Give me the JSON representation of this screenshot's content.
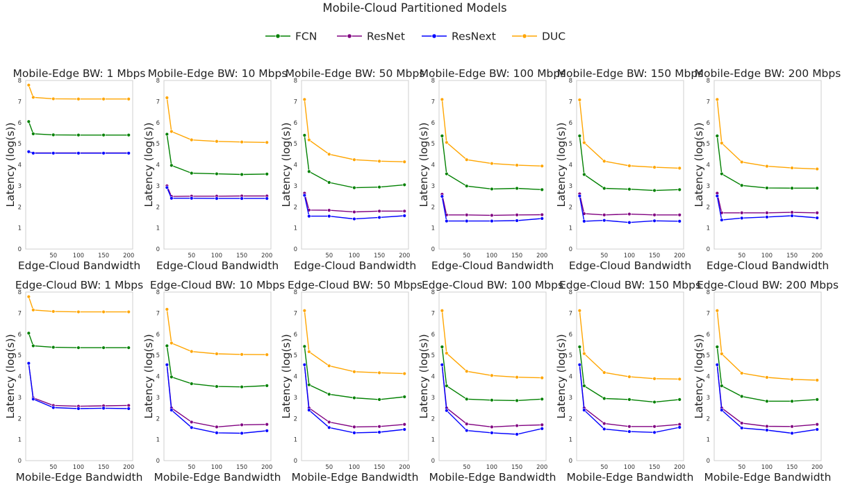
{
  "figure_title": "Mobile-Cloud Partitioned Models",
  "legend": [
    {
      "name": "FCN",
      "color": "#008000"
    },
    {
      "name": "ResNet",
      "color": "#800080"
    },
    {
      "name": "ResNext",
      "color": "#0000ff"
    },
    {
      "name": "DUC",
      "color": "#ffa500"
    }
  ],
  "chart_data": [
    {
      "type": "line",
      "title": "Mobile-Edge BW: 1 Mbps",
      "xlabel": "Edge-Cloud Bandwidth",
      "ylabel": "Latency (log(s))",
      "ylim": [
        0,
        8
      ],
      "x": [
        1,
        10,
        50,
        100,
        150,
        200
      ],
      "xticks": [
        50,
        100,
        150,
        200
      ],
      "yticks": [
        0,
        1,
        2,
        3,
        4,
        5,
        6,
        7,
        8
      ],
      "series": [
        {
          "name": "FCN",
          "values": [
            6.05,
            5.47,
            5.42,
            5.41,
            5.41,
            5.41
          ]
        },
        {
          "name": "ResNet",
          "values": [
            4.62,
            4.56,
            4.56,
            4.56,
            4.56,
            4.56
          ]
        },
        {
          "name": "ResNext",
          "values": [
            4.62,
            4.55,
            4.55,
            4.55,
            4.55,
            4.55
          ]
        },
        {
          "name": "DUC",
          "values": [
            7.78,
            7.2,
            7.13,
            7.12,
            7.12,
            7.12
          ]
        }
      ]
    },
    {
      "type": "line",
      "title": "Mobile-Edge BW: 10 Mbps",
      "xlabel": "Edge-Cloud Bandwidth",
      "ylabel": "Latency (log(s))",
      "ylim": [
        0,
        8
      ],
      "x": [
        1,
        10,
        50,
        100,
        150,
        200
      ],
      "xticks": [
        50,
        100,
        150,
        200
      ],
      "yticks": [
        0,
        1,
        2,
        3,
        4,
        5,
        6,
        7,
        8
      ],
      "series": [
        {
          "name": "FCN",
          "values": [
            5.45,
            3.97,
            3.6,
            3.57,
            3.54,
            3.56
          ]
        },
        {
          "name": "ResNet",
          "values": [
            3.0,
            2.5,
            2.51,
            2.51,
            2.52,
            2.52
          ]
        },
        {
          "name": "ResNext",
          "values": [
            2.92,
            2.41,
            2.41,
            2.4,
            2.4,
            2.4
          ]
        },
        {
          "name": "DUC",
          "values": [
            7.18,
            5.58,
            5.18,
            5.11,
            5.08,
            5.06
          ]
        }
      ]
    },
    {
      "type": "line",
      "title": "Mobile-Edge BW: 50 Mbps",
      "xlabel": "Edge-Cloud Bandwidth",
      "ylabel": "Latency (log(s))",
      "ylim": [
        0,
        8
      ],
      "x": [
        1,
        10,
        50,
        100,
        150,
        200
      ],
      "xticks": [
        50,
        100,
        150,
        200
      ],
      "yticks": [
        0,
        1,
        2,
        3,
        4,
        5,
        6,
        7,
        8
      ],
      "series": [
        {
          "name": "FCN",
          "values": [
            5.4,
            3.68,
            3.16,
            2.91,
            2.94,
            3.05
          ]
        },
        {
          "name": "ResNet",
          "values": [
            2.65,
            1.85,
            1.84,
            1.76,
            1.8,
            1.8
          ]
        },
        {
          "name": "ResNext",
          "values": [
            2.55,
            1.56,
            1.56,
            1.43,
            1.5,
            1.58
          ]
        },
        {
          "name": "DUC",
          "values": [
            7.1,
            5.18,
            4.5,
            4.24,
            4.17,
            4.14
          ]
        }
      ]
    },
    {
      "type": "line",
      "title": "Mobile-Edge BW: 100 Mbps",
      "xlabel": "Edge-Cloud Bandwidth",
      "ylabel": "Latency (log(s))",
      "ylim": [
        0,
        8
      ],
      "x": [
        1,
        10,
        50,
        100,
        150,
        200
      ],
      "xticks": [
        50,
        100,
        150,
        200
      ],
      "yticks": [
        0,
        1,
        2,
        3,
        4,
        5,
        6,
        7,
        8
      ],
      "series": [
        {
          "name": "FCN",
          "values": [
            5.37,
            3.57,
            2.99,
            2.85,
            2.88,
            2.82
          ]
        },
        {
          "name": "ResNet",
          "values": [
            2.6,
            1.62,
            1.62,
            1.6,
            1.62,
            1.63
          ]
        },
        {
          "name": "ResNext",
          "values": [
            2.5,
            1.33,
            1.33,
            1.33,
            1.35,
            1.45
          ]
        },
        {
          "name": "DUC",
          "values": [
            7.1,
            5.06,
            4.24,
            4.06,
            3.98,
            3.94
          ]
        }
      ]
    },
    {
      "type": "line",
      "title": "Mobile-Edge BW: 150 Mbps",
      "xlabel": "Edge-Cloud Bandwidth",
      "ylabel": "Latency (log(s))",
      "ylim": [
        0,
        8
      ],
      "x": [
        1,
        10,
        50,
        100,
        150,
        200
      ],
      "xticks": [
        50,
        100,
        150,
        200
      ],
      "yticks": [
        0,
        1,
        2,
        3,
        4,
        5,
        6,
        7,
        8
      ],
      "series": [
        {
          "name": "FCN",
          "values": [
            5.37,
            3.54,
            2.88,
            2.84,
            2.78,
            2.82
          ]
        },
        {
          "name": "ResNet",
          "values": [
            2.62,
            1.68,
            1.62,
            1.66,
            1.62,
            1.62
          ]
        },
        {
          "name": "ResNext",
          "values": [
            2.52,
            1.32,
            1.36,
            1.26,
            1.34,
            1.32
          ]
        },
        {
          "name": "DUC",
          "values": [
            7.08,
            5.05,
            4.17,
            3.95,
            3.88,
            3.84
          ]
        }
      ]
    },
    {
      "type": "line",
      "title": "Mobile-Edge BW: 200 Mbps",
      "xlabel": "Edge-Cloud Bandwidth",
      "ylabel": "Latency (log(s))",
      "ylim": [
        0,
        8
      ],
      "x": [
        1,
        10,
        50,
        100,
        150,
        200
      ],
      "xticks": [
        50,
        100,
        150,
        200
      ],
      "yticks": [
        0,
        1,
        2,
        3,
        4,
        5,
        6,
        7,
        8
      ],
      "series": [
        {
          "name": "FCN",
          "values": [
            5.37,
            3.57,
            3.02,
            2.9,
            2.89,
            2.89
          ]
        },
        {
          "name": "ResNet",
          "values": [
            2.65,
            1.72,
            1.72,
            1.72,
            1.74,
            1.72
          ]
        },
        {
          "name": "ResNext",
          "values": [
            2.52,
            1.38,
            1.47,
            1.52,
            1.58,
            1.48
          ]
        },
        {
          "name": "DUC",
          "values": [
            7.1,
            5.03,
            4.13,
            3.93,
            3.85,
            3.8
          ]
        }
      ]
    },
    {
      "type": "line",
      "title": "Edge-Cloud BW: 1 Mbps",
      "xlabel": "Mobile-Edge Bandwidth",
      "ylabel": "Latency (log(s))",
      "ylim": [
        0,
        8
      ],
      "x": [
        1,
        10,
        50,
        100,
        150,
        200
      ],
      "xticks": [
        50,
        100,
        150,
        200
      ],
      "yticks": [
        0,
        1,
        2,
        3,
        4,
        5,
        6,
        7,
        8
      ],
      "series": [
        {
          "name": "FCN",
          "values": [
            6.05,
            5.45,
            5.38,
            5.36,
            5.36,
            5.36
          ]
        },
        {
          "name": "ResNet",
          "values": [
            4.62,
            2.98,
            2.62,
            2.58,
            2.6,
            2.62
          ]
        },
        {
          "name": "ResNext",
          "values": [
            4.62,
            2.92,
            2.52,
            2.47,
            2.49,
            2.47
          ]
        },
        {
          "name": "DUC",
          "values": [
            7.78,
            7.15,
            7.08,
            7.06,
            7.06,
            7.06
          ]
        }
      ]
    },
    {
      "type": "line",
      "title": "Edge-Cloud BW: 10 Mbps",
      "xlabel": "Mobile-Edge Bandwidth",
      "ylabel": "Latency (log(s))",
      "ylim": [
        0,
        8
      ],
      "x": [
        1,
        10,
        50,
        100,
        150,
        200
      ],
      "xticks": [
        50,
        100,
        150,
        200
      ],
      "yticks": [
        0,
        1,
        2,
        3,
        4,
        5,
        6,
        7,
        8
      ],
      "series": [
        {
          "name": "FCN",
          "values": [
            5.45,
            3.97,
            3.65,
            3.52,
            3.5,
            3.56
          ]
        },
        {
          "name": "ResNet",
          "values": [
            4.55,
            2.5,
            1.83,
            1.6,
            1.7,
            1.72
          ]
        },
        {
          "name": "ResNext",
          "values": [
            4.55,
            2.4,
            1.57,
            1.32,
            1.3,
            1.42
          ]
        },
        {
          "name": "DUC",
          "values": [
            7.18,
            5.58,
            5.18,
            5.07,
            5.04,
            5.03
          ]
        }
      ]
    },
    {
      "type": "line",
      "title": "Edge-Cloud BW: 50 Mbps",
      "xlabel": "Mobile-Edge Bandwidth",
      "ylabel": "Latency (log(s))",
      "ylim": [
        0,
        8
      ],
      "x": [
        1,
        10,
        50,
        100,
        150,
        200
      ],
      "xticks": [
        50,
        100,
        150,
        200
      ],
      "yticks": [
        0,
        1,
        2,
        3,
        4,
        5,
        6,
        7,
        8
      ],
      "series": [
        {
          "name": "FCN",
          "values": [
            5.42,
            3.6,
            3.15,
            2.98,
            2.9,
            3.03
          ]
        },
        {
          "name": "ResNet",
          "values": [
            4.55,
            2.5,
            1.83,
            1.6,
            1.62,
            1.72
          ]
        },
        {
          "name": "ResNext",
          "values": [
            4.55,
            2.4,
            1.57,
            1.32,
            1.35,
            1.48
          ]
        },
        {
          "name": "DUC",
          "values": [
            7.12,
            5.17,
            4.5,
            4.22,
            4.17,
            4.13
          ]
        }
      ]
    },
    {
      "type": "line",
      "title": "Edge-Cloud BW: 100 Mbps",
      "xlabel": "Mobile-Edge Bandwidth",
      "ylabel": "Latency (log(s))",
      "ylim": [
        0,
        8
      ],
      "x": [
        1,
        10,
        50,
        100,
        150,
        200
      ],
      "xticks": [
        50,
        100,
        150,
        200
      ],
      "yticks": [
        0,
        1,
        2,
        3,
        4,
        5,
        6,
        7,
        8
      ],
      "series": [
        {
          "name": "FCN",
          "values": [
            5.4,
            3.55,
            2.92,
            2.87,
            2.85,
            2.92
          ]
        },
        {
          "name": "ResNet",
          "values": [
            4.55,
            2.5,
            1.74,
            1.6,
            1.66,
            1.7
          ]
        },
        {
          "name": "ResNext",
          "values": [
            4.55,
            2.38,
            1.43,
            1.32,
            1.25,
            1.52
          ]
        },
        {
          "name": "DUC",
          "values": [
            7.12,
            5.1,
            4.24,
            4.04,
            3.96,
            3.93
          ]
        }
      ]
    },
    {
      "type": "line",
      "title": "Edge-Cloud BW: 150 Mbps",
      "xlabel": "Mobile-Edge Bandwidth",
      "ylabel": "Latency (log(s))",
      "ylim": [
        0,
        8
      ],
      "x": [
        1,
        10,
        50,
        100,
        150,
        200
      ],
      "xticks": [
        50,
        100,
        150,
        200
      ],
      "yticks": [
        0,
        1,
        2,
        3,
        4,
        5,
        6,
        7,
        8
      ],
      "series": [
        {
          "name": "FCN",
          "values": [
            5.4,
            3.55,
            2.95,
            2.9,
            2.78,
            2.9
          ]
        },
        {
          "name": "ResNet",
          "values": [
            4.55,
            2.5,
            1.76,
            1.62,
            1.62,
            1.72
          ]
        },
        {
          "name": "ResNext",
          "values": [
            4.55,
            2.4,
            1.5,
            1.38,
            1.34,
            1.58
          ]
        },
        {
          "name": "DUC",
          "values": [
            7.12,
            5.08,
            4.18,
            3.98,
            3.89,
            3.87
          ]
        }
      ]
    },
    {
      "type": "line",
      "title": "Edge-Cloud BW: 200 Mbps",
      "xlabel": "Mobile-Edge Bandwidth",
      "ylabel": "Latency (log(s))",
      "ylim": [
        0,
        8
      ],
      "x": [
        1,
        10,
        50,
        100,
        150,
        200
      ],
      "xticks": [
        50,
        100,
        150,
        200
      ],
      "yticks": [
        0,
        1,
        2,
        3,
        4,
        5,
        6,
        7,
        8
      ],
      "series": [
        {
          "name": "FCN",
          "values": [
            5.4,
            3.55,
            3.05,
            2.82,
            2.82,
            2.9
          ]
        },
        {
          "name": "ResNet",
          "values": [
            4.55,
            2.5,
            1.78,
            1.63,
            1.62,
            1.72
          ]
        },
        {
          "name": "ResNext",
          "values": [
            4.55,
            2.4,
            1.55,
            1.45,
            1.3,
            1.48
          ]
        },
        {
          "name": "DUC",
          "values": [
            7.12,
            5.07,
            4.15,
            3.95,
            3.86,
            3.82
          ]
        }
      ]
    }
  ]
}
